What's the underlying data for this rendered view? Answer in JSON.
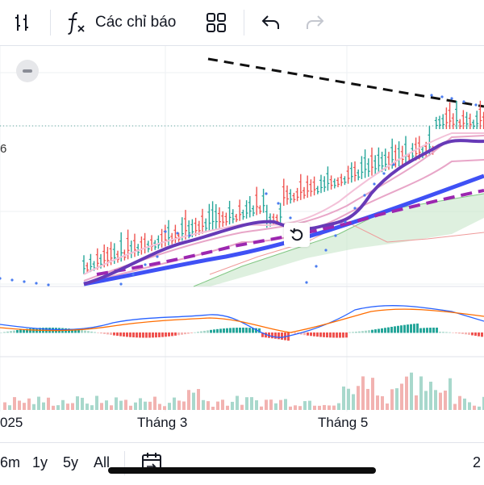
{
  "toolbar": {
    "indicators_label": "Các chỉ báo",
    "icons": [
      "candle-style-icon",
      "function-icon",
      "layout-grid-icon",
      "undo-icon",
      "redo-icon"
    ]
  },
  "chart": {
    "left_price_label": "6",
    "x_axis_labels": [
      "025",
      "Tháng 3",
      "Tháng 5"
    ]
  },
  "bottom_bar": {
    "ranges": [
      "6m",
      "1y",
      "5y",
      "All"
    ],
    "right_text": "2",
    "icons": [
      "calendar-goto-icon"
    ]
  },
  "colors": {
    "up": "#26a69a",
    "down": "#ef5350",
    "sma_fast": "#673ab7",
    "sma_slow": "#3f51f5",
    "ma_dashed": "#9c27b0",
    "sar": "#4a7cf0",
    "macd_line": "#2962ff",
    "signal_line": "#ff6d00"
  }
}
